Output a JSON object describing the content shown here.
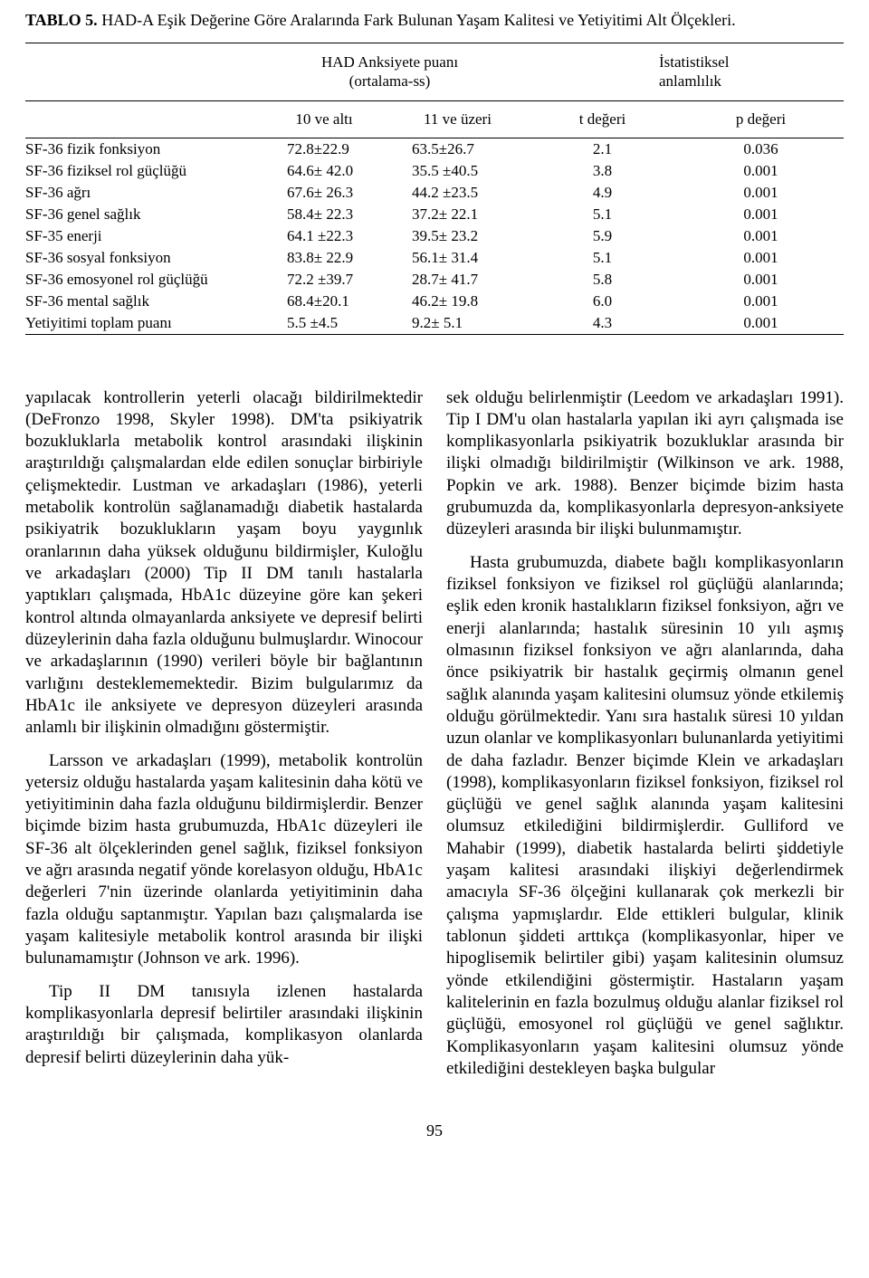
{
  "table": {
    "title_prefix": "TABLO 5.",
    "title_rest": " HAD-A Eşik Değerine Göre Aralarında Fark Bulunan Yaşam Kalitesi ve Yetiyitimi Alt Ölçekleri.",
    "group_header_left_1": "HAD Anksiyete puanı",
    "group_header_left_2": "(ortalama-ss)",
    "group_header_right_1": "İstatistiksel",
    "group_header_right_2": "anlamlılık",
    "sub_headers": {
      "c1": "10 ve altı",
      "c2": "11 ve üzeri",
      "c3": "t değeri",
      "c4": "p değeri"
    },
    "rows": [
      {
        "label": "SF-36 fizik fonksiyon",
        "c1": "72.8±22.9",
        "c2": "63.5±26.7",
        "c3": "2.1",
        "c4": "0.036"
      },
      {
        "label": "SF-36 fiziksel rol güçlüğü",
        "c1": "64.6± 42.0",
        "c2": "35.5 ±40.5",
        "c3": "3.8",
        "c4": "0.001"
      },
      {
        "label": "SF-36 ağrı",
        "c1": "67.6± 26.3",
        "c2": "44.2 ±23.5",
        "c3": "4.9",
        "c4": "0.001"
      },
      {
        "label": "SF-36 genel sağlık",
        "c1": "58.4± 22.3",
        "c2": "37.2± 22.1",
        "c3": "5.1",
        "c4": "0.001"
      },
      {
        "label": "SF-35 enerji",
        "c1": "64.1 ±22.3",
        "c2": "39.5± 23.2",
        "c3": "5.9",
        "c4": "0.001"
      },
      {
        "label": "SF-36 sosyal fonksiyon",
        "c1": "83.8± 22.9",
        "c2": "56.1± 31.4",
        "c3": "5.1",
        "c4": "0.001"
      },
      {
        "label": "SF-36 emosyonel rol güçlüğü",
        "c1": "72.2 ±39.7",
        "c2": "28.7± 41.7",
        "c3": "5.8",
        "c4": "0.001"
      },
      {
        "label": "SF-36 mental sağlık",
        "c1": "68.4±20.1",
        "c2": "46.2± 19.8",
        "c3": "6.0",
        "c4": "0.001"
      },
      {
        "label": "Yetiyitimi toplam puanı",
        "c1": "5.5 ±4.5",
        "c2": "9.2± 5.1",
        "c3": "4.3",
        "c4": "0.001"
      }
    ]
  },
  "left_paragraphs": [
    "yapılacak kontrollerin yeterli olacağı bildirilmektedir (DeFronzo 1998, Skyler 1998). DM'ta psikiyatrik bozukluklarla metabolik kontrol arasındaki ilişkinin araştırıldığı çalışmalardan elde edilen sonuçlar birbiriyle çelişmektedir. Lustman ve arkadaşları (1986), yeterli metabolik kontrolün sağlanamadığı diabetik hastalarda psikiyatrik bozuklukların yaşam boyu yaygınlık oranlarının daha yüksek olduğunu bildirmişler, Kuloğlu ve arkadaşları (2000) Tip II DM tanılı hastalarla yaptıkları çalışmada, HbA1c düzeyine göre kan şekeri kontrol altında olmayanlarda anksiyete ve depresif belirti düzeylerinin daha fazla olduğunu bulmuşlardır. Winocour ve arkadaşlarının (1990) verileri böyle bir bağlantının varlığını desteklememektedir. Bizim bulgularımız da HbA1c ile anksiyete ve depresyon düzeyleri arasında anlamlı bir ilişkinin olmadığını göstermiştir.",
    "Larsson ve arkadaşları (1999), metabolik kontrolün yetersiz olduğu hastalarda yaşam kalitesinin daha kötü ve yetiyitiminin daha fazla olduğunu bildirmişlerdir. Benzer biçimde bizim hasta grubumuzda, HbA1c düzeyleri ile SF-36 alt ölçeklerinden genel sağlık, fiziksel fonksiyon ve ağrı arasında negatif yönde korelasyon olduğu, HbA1c değerleri 7'nin üzerinde olanlarda yetiyitiminin daha fazla olduğu saptanmıştır. Yapılan bazı çalışmalarda ise yaşam kalitesiyle metabolik kontrol arasında bir ilişki bulunamamıştır (Johnson ve ark. 1996).",
    "Tip II DM tanısıyla izlenen hastalarda komplikasyonlarla depresif belirtiler arasındaki ilişkinin araştırıldığı bir çalışmada, komplikasyon olanlarda depresif belirti düzeylerinin daha yük-"
  ],
  "right_paragraphs": [
    "sek olduğu belirlenmiştir (Leedom ve arkadaşları 1991). Tip I DM'u olan hastalarla yapılan iki ayrı çalışmada ise komplikasyonlarla psikiyatrik bozukluklar arasında bir ilişki olmadığı bildirilmiştir (Wilkinson ve ark. 1988, Popkin ve ark. 1988). Benzer biçimde bizim hasta grubumuzda da, komplikasyonlarla depresyon-anksiyete düzeyleri arasında bir ilişki bulunmamıştır.",
    "Hasta grubumuzda, diabete bağlı komplikasyonların fiziksel fonksiyon ve fiziksel rol güçlüğü alanlarında; eşlik eden kronik hastalıkların fiziksel fonksiyon, ağrı ve enerji alanlarında; hastalık süresinin 10 yılı aşmış olmasının fiziksel fonksiyon ve ağrı alanlarında, daha önce psikiyatrik bir hastalık geçirmiş olmanın genel sağlık alanında yaşam kalitesini olumsuz yönde etkilemiş olduğu görülmektedir. Yanı sıra hastalık süresi 10 yıldan uzun olanlar ve komplikasyonları bulunanlarda yetiyitimi de daha fazladır. Benzer biçimde Klein ve arkadaşları (1998), komplikasyonların fiziksel fonksiyon, fiziksel rol güçlüğü ve genel sağlık alanında yaşam kalitesini olumsuz etkilediğini bildirmişlerdir. Gulliford ve Mahabir (1999), diabetik hastalarda belirti şiddetiyle yaşam kalitesi arasındaki ilişkiyi değerlendirmek amacıyla SF-36 ölçeğini kullanarak çok merkezli bir çalışma yapmışlardır. Elde ettikleri bulgular, klinik tablonun şiddeti arttıkça (komplikasyonlar, hiper ve hipoglisemik belirtiler gibi) yaşam kalitesinin olumsuz yönde etkilendiğini göstermiştir. Hastaların yaşam kalitelerinin en fazla bozulmuş olduğu alanlar fiziksel rol güçlüğü, emosyonel rol güçlüğü ve genel sağlıktır. Komplikasyonların yaşam kalitesini olumsuz yönde etkilediğini destekleyen başka bulgular"
  ],
  "page_number": "95"
}
